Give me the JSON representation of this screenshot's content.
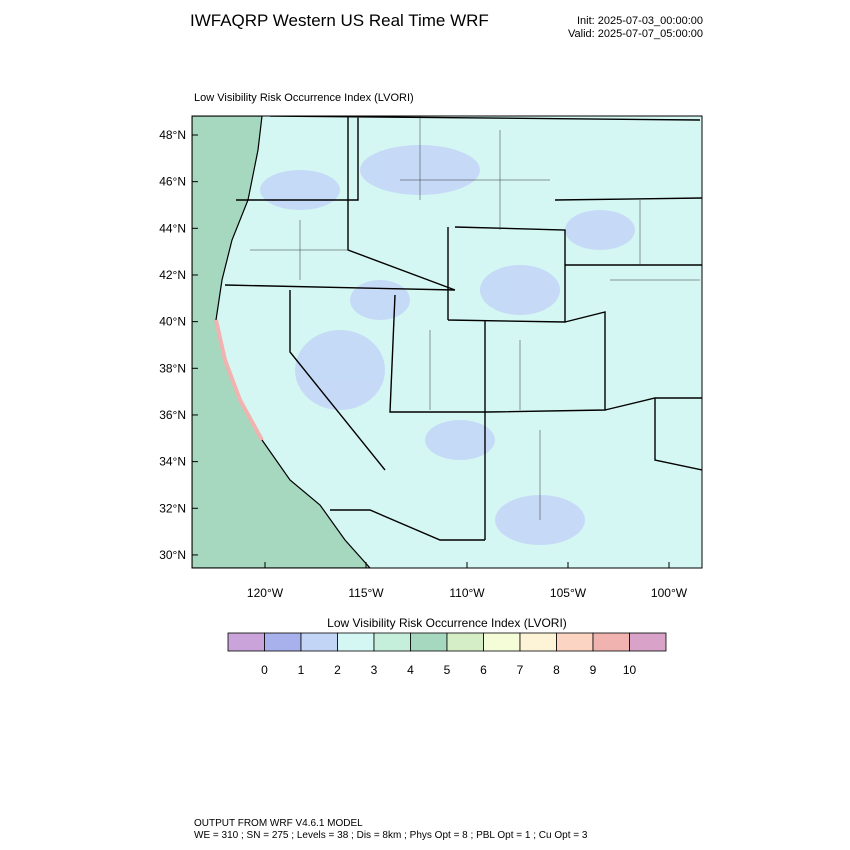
{
  "header": {
    "title": "IWFAQRP Western US Real Time WRF",
    "init": "Init: 2025-07-03_00:00:00",
    "valid": "Valid: 2025-07-07_05:00:00"
  },
  "map": {
    "subtitle": "Low Visibility Risk Occurrence Index   (LVORI)",
    "lat_ticks": [
      {
        "value": 48,
        "label": "48°N"
      },
      {
        "value": 46,
        "label": "46°N"
      },
      {
        "value": 44,
        "label": "44°N"
      },
      {
        "value": 42,
        "label": "42°N"
      },
      {
        "value": 40,
        "label": "40°N"
      },
      {
        "value": 38,
        "label": "38°N"
      },
      {
        "value": 36,
        "label": "36°N"
      },
      {
        "value": 34,
        "label": "34°N"
      },
      {
        "value": 32,
        "label": "32°N"
      },
      {
        "value": 30,
        "label": "30°N"
      }
    ],
    "lon_ticks": [
      {
        "value": -120,
        "label": "120°W"
      },
      {
        "value": -115,
        "label": "115°W"
      },
      {
        "value": -110,
        "label": "110°W"
      },
      {
        "value": -105,
        "label": "105°W"
      },
      {
        "value": -100,
        "label": "100°W"
      }
    ]
  },
  "colorbar": {
    "title": "Low Visibility Risk Occurrence Index  (LVORI)",
    "colors": [
      "#c9a3d9",
      "#a9b1ec",
      "#c3d5f7",
      "#d5f7f3",
      "#c5efdb",
      "#a6d7bf",
      "#d6eec8",
      "#f5fcd8",
      "#fdf3d6",
      "#fbd4c4",
      "#f1b3b0",
      "#d9a3c9"
    ],
    "ticks": [
      0,
      1,
      2,
      3,
      4,
      5,
      6,
      7,
      8,
      9,
      10
    ]
  },
  "footer": {
    "line1": "OUTPUT FROM WRF V4.6.1 MODEL",
    "line2": "WE = 310 ; SN = 275 ; Levels = 38 ; Dis = 8km ; Phys Opt = 8 ; PBL Opt = 1 ; Cu Opt = 3"
  }
}
